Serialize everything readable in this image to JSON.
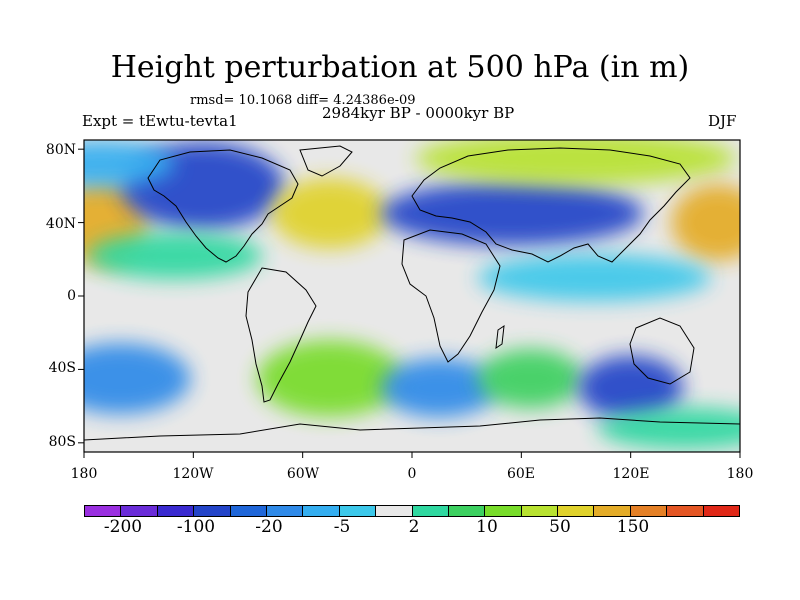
{
  "title": "Height perturbation at 500 hPa (in m)",
  "stats": "rmsd= 10.1068 diff= 4.24386e-09",
  "period": "2984kyr BP - 0000kyr BP",
  "experiment": "Expt = tEwtu-tevta1",
  "season": "DJF",
  "map": {
    "lat_labels": [
      "80N",
      "40N",
      "0",
      "40S",
      "80S"
    ],
    "lon_labels": [
      "180",
      "120W",
      "60W",
      "0",
      "60E",
      "120E",
      "180"
    ],
    "background_color": "#e8e8e8"
  },
  "colorbar": {
    "colors": [
      "#9a2fe0",
      "#6a2cd8",
      "#3a2ad0",
      "#2344c8",
      "#1f66d8",
      "#2f8ae8",
      "#34aef0",
      "#3cc8ea",
      "#e8e8e8",
      "#2fd8a0",
      "#3cd060",
      "#78dc2a",
      "#b8e230",
      "#e0d22c",
      "#e4ac28",
      "#e48026",
      "#e45624",
      "#e02818"
    ],
    "labels": [
      "-200",
      "-100",
      "-20",
      "-5",
      "2",
      "10",
      "50",
      "150"
    ]
  },
  "anomalies": [
    {
      "name": "north-pacific-warm",
      "color": "#e4ac28",
      "lon": -170,
      "lat": 40,
      "rlon": 16,
      "rlat": 15
    },
    {
      "name": "north-america-low",
      "color": "#2344c8",
      "lon": -115,
      "lat": 60,
      "rlon": 28,
      "rlat": 15
    },
    {
      "name": "atlantic-high",
      "color": "#e0d22c",
      "lon": -45,
      "lat": 45,
      "rlon": 20,
      "rlat": 12
    },
    {
      "name": "eurasia-low",
      "color": "#2344c8",
      "lon": 55,
      "lat": 45,
      "rlon": 45,
      "rlat": 11
    },
    {
      "name": "arctic-high",
      "color": "#b8e230",
      "lon": 90,
      "lat": 75,
      "rlon": 55,
      "rlat": 9
    },
    {
      "name": "west-pacific-warm",
      "color": "#e4ac28",
      "lon": 168,
      "lat": 40,
      "rlon": 16,
      "rlat": 13
    },
    {
      "name": "north-pacific-low",
      "color": "#34aef0",
      "lon": -170,
      "lat": 72,
      "rlon": 25,
      "rlat": 8
    },
    {
      "name": "south-pacific-low",
      "color": "#2f8ae8",
      "lon": -160,
      "lat": -45,
      "rlon": 24,
      "rlat": 12
    },
    {
      "name": "south-america-green",
      "color": "#78dc2a",
      "lon": -45,
      "lat": -45,
      "rlon": 25,
      "rlat": 13
    },
    {
      "name": "south-atlantic-low",
      "color": "#2f8ae8",
      "lon": 15,
      "lat": -50,
      "rlon": 20,
      "rlat": 10
    },
    {
      "name": "indian-ocean-green",
      "color": "#3cd060",
      "lon": 65,
      "lat": -45,
      "rlon": 18,
      "rlat": 10
    },
    {
      "name": "australia-south-low",
      "color": "#2344c8",
      "lon": 120,
      "lat": -50,
      "rlon": 18,
      "rlat": 11
    },
    {
      "name": "tropical-pacific-green",
      "color": "#2fd8a0",
      "lon": -130,
      "lat": 22,
      "rlon": 30,
      "rlat": 8
    },
    {
      "name": "tropical-band-cyan",
      "color": "#3cc8ea",
      "lon": 100,
      "lat": 10,
      "rlon": 40,
      "rlat": 8
    },
    {
      "name": "southern-green-band",
      "color": "#2fd8a0",
      "lon": 150,
      "lat": -72,
      "rlon": 30,
      "rlat": 7
    }
  ]
}
